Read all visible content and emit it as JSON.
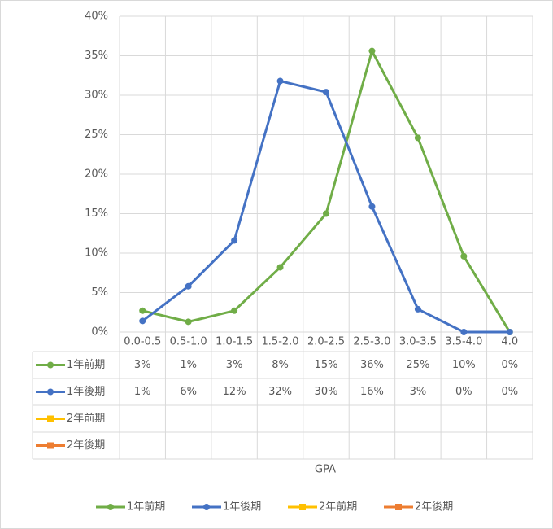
{
  "chart_data": {
    "type": "line",
    "categories": [
      "0.0-0.5",
      "0.5-1.0",
      "1.0-1.5",
      "1.5-2.0",
      "2.0-2.5",
      "2.5-3.0",
      "3.0-3.5",
      "3.5-4.0",
      "4.0"
    ],
    "series": [
      {
        "name": "1年前期",
        "color": "#70ad47",
        "values": [
          2.7,
          1.3,
          2.7,
          8.2,
          15.0,
          35.6,
          24.6,
          9.6,
          0
        ],
        "value_labels": [
          "3%",
          "1%",
          "3%",
          "8%",
          "15%",
          "36%",
          "25%",
          "10%",
          "0%"
        ]
      },
      {
        "name": "1年後期",
        "color": "#4472c4",
        "values": [
          1.4,
          5.8,
          11.6,
          31.8,
          30.4,
          15.9,
          2.9,
          0,
          0
        ],
        "value_labels": [
          "1%",
          "6%",
          "12%",
          "32%",
          "30%",
          "16%",
          "3%",
          "0%",
          "0%"
        ]
      },
      {
        "name": "2年前期",
        "color": "#ffc000",
        "values": [
          null,
          null,
          null,
          null,
          null,
          null,
          null,
          null,
          null
        ]
      },
      {
        "name": "2年後期",
        "color": "#ed7d31",
        "values": [
          null,
          null,
          null,
          null,
          null,
          null,
          null,
          null,
          null
        ]
      }
    ],
    "x_label": "GPA",
    "ylim": [
      0,
      40
    ],
    "yticks": [
      {
        "value": 0,
        "label": "0%"
      },
      {
        "value": 5,
        "label": "5%"
      },
      {
        "value": 10,
        "label": "10%"
      },
      {
        "value": 15,
        "label": "15%"
      },
      {
        "value": 20,
        "label": "20%"
      },
      {
        "value": 25,
        "label": "25%"
      },
      {
        "value": 30,
        "label": "30%"
      },
      {
        "value": 35,
        "label": "35%"
      },
      {
        "value": 40,
        "label": "40%"
      }
    ],
    "grid": true,
    "legend": "bottom"
  }
}
